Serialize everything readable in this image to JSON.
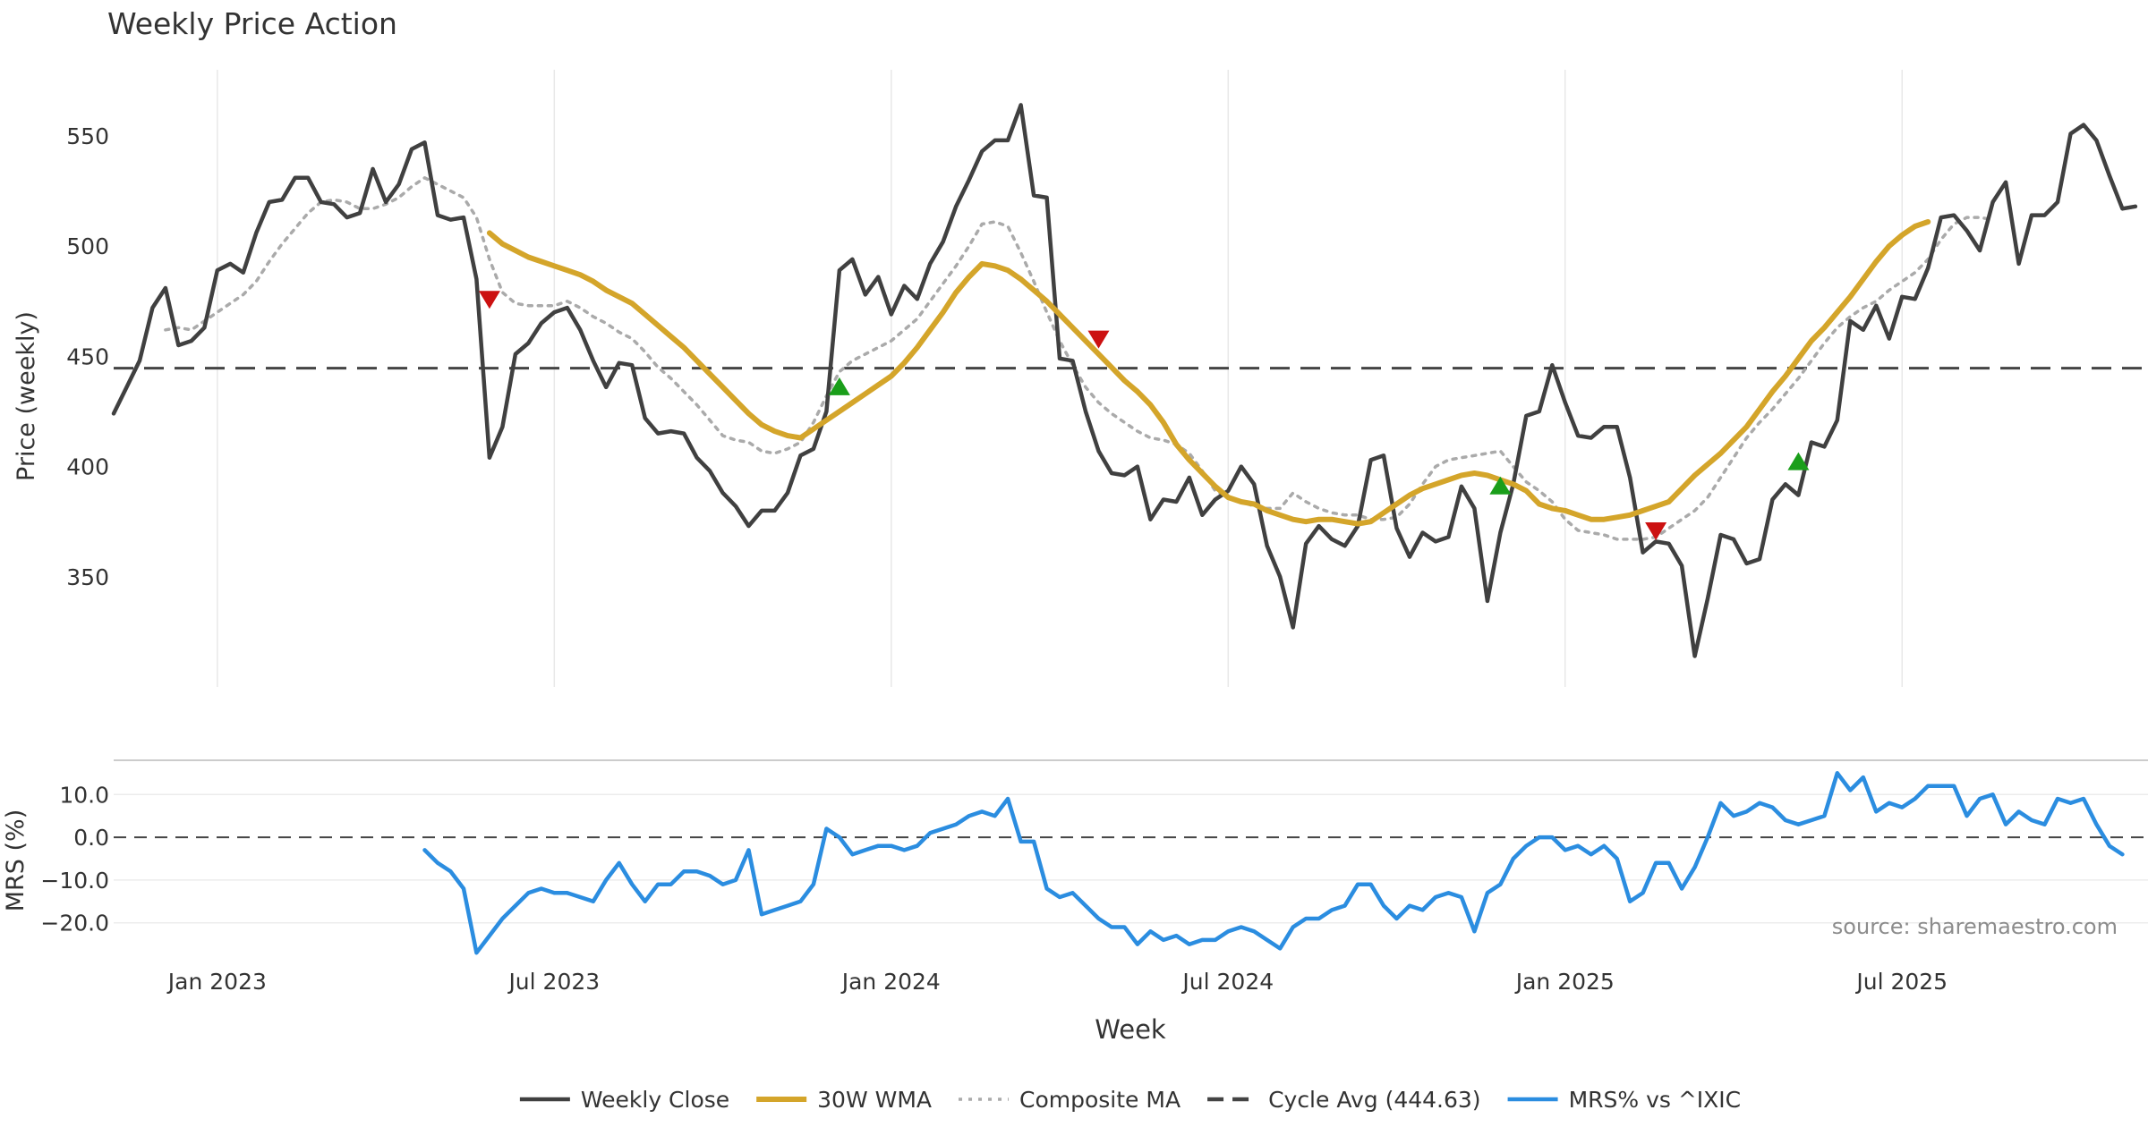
{
  "chart_data": {
    "type": "line",
    "title": "Weekly Price Action",
    "xlabel": "Week",
    "source": "source: sharemaestro.com",
    "x_ticks": [
      "Jan 2023",
      "Jul 2023",
      "Jan 2024",
      "Jul 2024",
      "Jan 2025",
      "Jul 2025"
    ],
    "x_tick_weeks": [
      4,
      30,
      56,
      82,
      108,
      134
    ],
    "x_range": [
      -4,
      156
    ],
    "colors": {
      "close": "#404040",
      "wma": "#d4a52a",
      "composite": "#aaaaaa",
      "cycle": "#444444",
      "mrs": "#2b8de0",
      "buy": "#1a9e1a",
      "sell": "#cc1111",
      "grid": "#e8e8e8"
    },
    "price_panel": {
      "ylabel": "Price (weekly)",
      "ylim": [
        300,
        580
      ],
      "yticks": [
        350,
        400,
        450,
        500,
        550
      ],
      "cycle_avg": 444.63,
      "series": [
        {
          "name": "Weekly Close",
          "key": "close",
          "start_week": -4,
          "values": [
            424,
            436,
            448,
            472,
            481,
            455,
            457,
            463,
            489,
            492,
            488,
            506,
            520,
            521,
            531,
            531,
            520,
            519,
            513,
            515,
            535,
            520,
            528,
            544,
            547,
            514,
            512,
            513,
            485,
            404,
            418,
            451,
            456,
            465,
            470,
            472,
            462,
            448,
            436,
            447,
            446,
            422,
            415,
            416,
            415,
            404,
            398,
            388,
            382,
            373,
            380,
            380,
            388,
            405,
            408,
            425,
            489,
            494,
            478,
            486,
            469,
            482,
            476,
            492,
            502,
            518,
            530,
            543,
            548,
            548,
            564,
            523,
            522,
            449,
            448,
            425,
            407,
            397,
            396,
            400,
            376,
            385,
            384,
            395,
            378,
            385,
            389,
            400,
            392,
            364,
            350,
            327,
            365,
            373,
            367,
            364,
            373,
            403,
            405,
            372,
            359,
            370,
            366,
            368,
            391,
            381,
            339,
            370,
            392,
            423,
            425,
            446,
            429,
            414,
            413,
            418,
            418,
            395,
            361,
            366,
            365,
            355,
            314,
            340,
            369,
            367,
            356,
            358,
            385,
            392,
            387,
            411,
            409,
            421,
            466,
            462,
            473,
            458,
            477,
            476,
            490,
            513,
            514,
            507,
            498,
            520,
            529,
            492,
            514,
            514,
            520,
            551,
            555,
            548,
            532,
            517,
            518
          ]
        },
        {
          "name": "30W WMA",
          "key": "wma",
          "start_week": 25,
          "values": [
            506,
            501,
            498,
            495,
            493,
            491,
            489,
            487,
            484,
            480,
            477,
            474,
            469,
            464,
            459,
            454,
            448,
            442,
            436,
            430,
            424,
            419,
            416,
            414,
            413,
            417,
            421,
            425,
            429,
            433,
            437,
            441,
            447,
            454,
            462,
            470,
            479,
            486,
            492,
            491,
            489,
            485,
            480,
            475,
            469,
            463,
            457,
            451,
            445,
            439,
            434,
            428,
            420,
            410,
            403,
            397,
            391,
            386,
            384,
            383,
            380,
            378,
            376,
            375,
            376,
            376,
            375,
            374,
            375,
            379,
            383,
            387,
            390,
            392,
            394,
            396,
            397,
            396,
            394,
            392,
            389,
            383,
            381,
            380,
            378,
            376,
            376,
            377,
            378,
            380,
            382,
            384,
            390,
            396,
            401,
            406,
            412,
            418,
            426,
            434,
            441,
            449,
            457,
            463,
            470,
            477,
            485,
            493,
            500,
            505,
            509,
            511
          ]
        },
        {
          "name": "Composite MA",
          "key": "composite",
          "start_week": 0,
          "values": [
            462,
            463,
            462,
            466,
            470,
            474,
            478,
            484,
            493,
            501,
            508,
            515,
            520,
            521,
            520,
            517,
            517,
            519,
            522,
            527,
            531,
            528,
            525,
            522,
            513,
            494,
            479,
            474,
            473,
            473,
            473,
            475,
            472,
            468,
            465,
            461,
            458,
            452,
            445,
            440,
            434,
            428,
            421,
            414,
            412,
            411,
            407,
            406,
            408,
            411,
            420,
            432,
            443,
            448,
            451,
            454,
            457,
            462,
            467,
            475,
            483,
            491,
            500,
            510,
            511,
            509,
            497,
            484,
            470,
            457,
            446,
            436,
            429,
            424,
            420,
            416,
            413,
            412,
            410,
            406,
            398,
            389,
            386,
            384,
            382,
            381,
            381,
            388,
            384,
            381,
            379,
            378,
            378,
            376,
            376,
            377,
            383,
            392,
            400,
            403,
            404,
            405,
            406,
            407,
            400,
            393,
            389,
            384,
            376,
            371,
            370,
            369,
            367,
            367,
            367,
            368,
            372,
            376,
            380,
            386,
            395,
            404,
            413,
            420,
            426,
            433,
            440,
            448,
            456,
            463,
            468,
            472,
            475,
            480,
            484,
            488,
            494,
            503,
            510,
            513,
            513,
            512
          ]
        }
      ],
      "signals": [
        {
          "type": "sell",
          "week": 25,
          "value": 476
        },
        {
          "type": "buy",
          "week": 52,
          "value": 436
        },
        {
          "type": "sell",
          "week": 72,
          "value": 458
        },
        {
          "type": "buy",
          "week": 103,
          "value": 391
        },
        {
          "type": "sell",
          "week": 115,
          "value": 371
        },
        {
          "type": "buy",
          "week": 126,
          "value": 402
        }
      ]
    },
    "mrs_panel": {
      "ylabel": "MRS (%)",
      "ylim": [
        -28,
        18
      ],
      "yticks": [
        10.0,
        0.0,
        -10.0,
        -20.0
      ],
      "ytick_labels": [
        "10.0",
        "0.0",
        "−10.0",
        "−20.0"
      ],
      "series": [
        {
          "name": "MRS% vs ^IXIC",
          "key": "mrs",
          "start_week": 20,
          "values": [
            -3,
            -6,
            -8,
            -12,
            -27,
            -23,
            -19,
            -16,
            -13,
            -12,
            -13,
            -13,
            -14,
            -15,
            -10,
            -6,
            -11,
            -15,
            -11,
            -11,
            -8,
            -8,
            -9,
            -11,
            -10,
            -3,
            -18,
            -17,
            -16,
            -15,
            -11,
            2,
            0,
            -4,
            -3,
            -2,
            -2,
            -3,
            -2,
            1,
            2,
            3,
            5,
            6,
            5,
            9,
            -1,
            -1,
            -12,
            -14,
            -13,
            -16,
            -19,
            -21,
            -21,
            -25,
            -22,
            -24,
            -23,
            -25,
            -24,
            -24,
            -22,
            -21,
            -22,
            -24,
            -26,
            -21,
            -19,
            -19,
            -17,
            -16,
            -11,
            -11,
            -16,
            -19,
            -16,
            -17,
            -14,
            -13,
            -14,
            -22,
            -13,
            -11,
            -5,
            -2,
            0,
            0,
            -3,
            -2,
            -4,
            -2,
            -5,
            -15,
            -13,
            -6,
            -6,
            -12,
            -7,
            0,
            8,
            5,
            6,
            8,
            7,
            4,
            3,
            4,
            5,
            15,
            11,
            14,
            6,
            8,
            7,
            9,
            12,
            12,
            12,
            5,
            9,
            10,
            3,
            6,
            4,
            3,
            9,
            8,
            9,
            3,
            -2,
            -4
          ]
        }
      ]
    },
    "legend": {
      "position": "bottom-center",
      "items": [
        {
          "label": "Weekly Close",
          "key": "close",
          "style": "solid"
        },
        {
          "label": "30W WMA",
          "key": "wma",
          "style": "solid"
        },
        {
          "label": "Composite MA",
          "key": "composite",
          "style": "dotted"
        },
        {
          "label": "Cycle Avg (444.63)",
          "key": "cycle",
          "style": "dashed"
        },
        {
          "label": "MRS% vs ^IXIC",
          "key": "mrs",
          "style": "solid"
        }
      ]
    }
  }
}
